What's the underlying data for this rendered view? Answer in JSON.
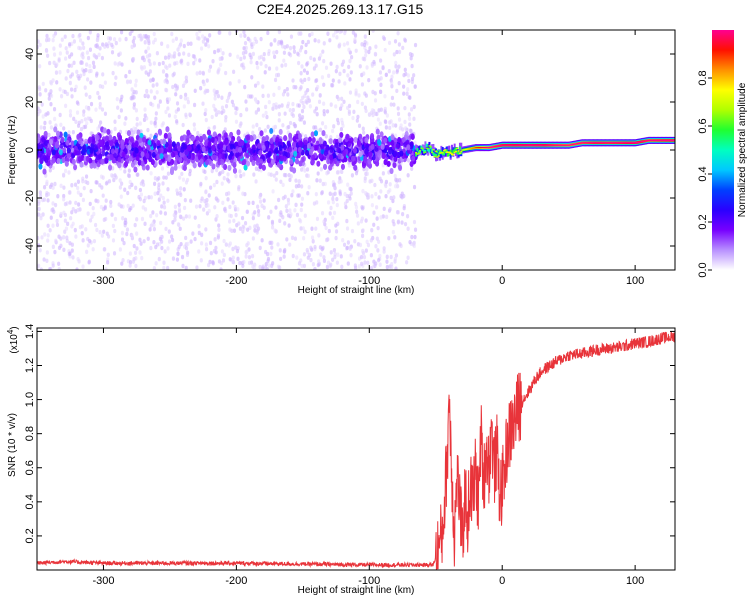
{
  "chart_data": [
    {
      "type": "heatmap",
      "title": "C2E4.2025.269.13.17.G15",
      "xlabel": "Height of straight line (km)",
      "ylabel": "Frequency (Hz)",
      "xlim": [
        -350,
        130
      ],
      "ylim": [
        -50,
        50
      ],
      "xticks": [
        -300,
        -200,
        -100,
        0,
        100
      ],
      "xtick_labels": [
        "-300",
        "-200",
        "-100",
        "0",
        "100"
      ],
      "yticks": [
        -40,
        -20,
        0,
        20,
        40
      ],
      "ytick_labels": [
        "-40",
        "-20",
        "0",
        "20",
        "40"
      ],
      "colorbar": {
        "label": "Normalized spectral amplitude",
        "range": [
          0.0,
          1.0
        ],
        "ticks": [
          0.0,
          0.2,
          0.4,
          0.6,
          0.8
        ],
        "tick_labels": [
          "0.0",
          "0.2",
          "0.4",
          "0.6",
          "0.8"
        ],
        "colormap": [
          "#ffffff",
          "#b890ff",
          "#7700ff",
          "#2a00ff",
          "#0040ff",
          "#00c8ff",
          "#00ffc0",
          "#20ff30",
          "#b0ff00",
          "#ffff00",
          "#ff9000",
          "#ff1000",
          "#ff0090"
        ]
      },
      "noise_region": {
        "x_range": [
          -350,
          -65
        ],
        "band_center_hz": 0,
        "band_halfwidth_hz": 10,
        "scatter_halfwidth_hz": 50,
        "band_amplitude": 0.18,
        "scatter_amplitude": 0.04
      },
      "signal_ridge": {
        "x": [
          -65,
          -60,
          -55,
          -50,
          -45,
          -40,
          -30,
          -20,
          -10,
          0,
          10,
          20,
          30,
          40,
          50,
          60,
          70,
          80,
          90,
          100,
          110,
          120,
          130
        ],
        "frequency_hz": [
          -1,
          0,
          1,
          -2,
          -1,
          -1,
          0,
          1,
          1,
          2,
          2,
          2,
          2,
          2,
          2,
          3,
          3,
          3,
          3,
          3,
          4,
          4,
          4
        ],
        "amplitude": [
          0.55,
          0.5,
          0.5,
          0.55,
          0.55,
          0.6,
          0.55,
          0.7,
          0.8,
          0.9,
          0.92,
          0.95,
          0.93,
          0.85,
          0.82,
          0.85,
          0.9,
          0.88,
          0.9,
          0.95,
          0.85,
          0.88,
          0.9
        ]
      }
    },
    {
      "type": "line",
      "xlabel": "Height of straight line (km)",
      "ylabel": "SNR (10 * v/v)",
      "scale_label": "(x10",
      "scale_exponent": "4",
      "xlim": [
        -350,
        130
      ],
      "ylim": [
        0,
        1.42
      ],
      "xticks": [
        -300,
        -200,
        -100,
        0,
        100
      ],
      "xtick_labels": [
        "-300",
        "-200",
        "-100",
        "0",
        "100"
      ],
      "yticks": [
        0.2,
        0.4,
        0.6,
        0.8,
        1.0,
        1.2,
        1.4
      ],
      "ytick_labels": [
        "0.2",
        "0.4",
        "0.6",
        "0.8",
        "1.0",
        "1.2",
        "1.4"
      ],
      "line_color": "#e8343a",
      "series": [
        {
          "name": "SNR",
          "x": [
            -350,
            -330,
            -300,
            -250,
            -200,
            -150,
            -100,
            -70,
            -52,
            -48,
            -45,
            -43,
            -41,
            -40,
            -38,
            -36,
            -34,
            -32,
            -30,
            -28,
            -26,
            -24,
            -22,
            -20,
            -18,
            -16,
            -14,
            -12,
            -10,
            -8,
            -6,
            -4,
            -2,
            0,
            2,
            4,
            6,
            8,
            10,
            12,
            14,
            16,
            20,
            25,
            30,
            40,
            50,
            60,
            70,
            80,
            90,
            100,
            110,
            120,
            130
          ],
          "values": [
            0.04,
            0.05,
            0.04,
            0.04,
            0.04,
            0.035,
            0.03,
            0.03,
            0.03,
            0.12,
            0.22,
            0.45,
            0.72,
            1.05,
            0.6,
            0.2,
            0.55,
            0.4,
            0.15,
            0.45,
            0.3,
            0.5,
            0.42,
            0.6,
            0.38,
            0.8,
            0.5,
            0.72,
            0.6,
            0.82,
            0.58,
            0.7,
            0.45,
            0.48,
            0.62,
            0.75,
            0.8,
            0.85,
            0.9,
            0.95,
            0.98,
            1.0,
            1.05,
            1.12,
            1.17,
            1.22,
            1.26,
            1.27,
            1.29,
            1.3,
            1.31,
            1.33,
            1.34,
            1.36,
            1.37
          ]
        }
      ]
    }
  ]
}
